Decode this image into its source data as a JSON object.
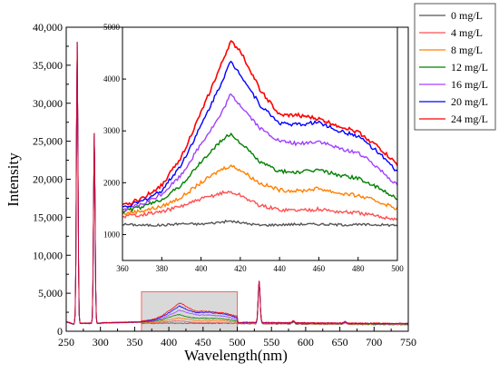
{
  "chart_data": [
    {
      "id": "main",
      "type": "line",
      "title": "",
      "xlabel": "Wavelength(nm)",
      "ylabel": "Intensity",
      "xlim": [
        250,
        750
      ],
      "ylim": [
        0,
        40000
      ],
      "xticks": [
        250,
        300,
        350,
        400,
        450,
        500,
        550,
        600,
        650,
        700,
        750
      ],
      "yticks": [
        0,
        5000,
        10000,
        15000,
        20000,
        25000,
        30000,
        35000,
        40000
      ],
      "xtick_labels": [
        "250",
        "300",
        "350",
        "400",
        "450",
        "500",
        "550",
        "600",
        "650",
        "700",
        "750"
      ],
      "ytick_labels": [
        "0",
        "5,000",
        "10,000",
        "15,000",
        "20,000",
        "25,000",
        "30,000",
        "35,000",
        "40,000"
      ],
      "grid": false,
      "peaks": [
        {
          "x": 266,
          "y": 38200
        },
        {
          "x": 291,
          "y": 26200
        },
        {
          "x": 532,
          "y": 6700
        }
      ],
      "highlight_region": {
        "x": [
          360,
          500
        ],
        "y": [
          0,
          5200
        ]
      }
    },
    {
      "id": "inset",
      "type": "line",
      "title": "",
      "xlabel": "",
      "ylabel": "",
      "xlim": [
        360,
        500
      ],
      "ylim": [
        500,
        5000
      ],
      "xticks": [
        360,
        380,
        400,
        420,
        440,
        460,
        480,
        500
      ],
      "yticks": [
        1000,
        2000,
        3000,
        4000,
        5000
      ],
      "xtick_labels": [
        "360",
        "380",
        "400",
        "420",
        "440",
        "460",
        "480",
        "500"
      ],
      "ytick_labels": [
        "1000",
        "2000",
        "3000",
        "4000",
        "5000"
      ],
      "grid": false,
      "x": [
        360,
        370,
        380,
        390,
        400,
        410,
        415,
        420,
        430,
        440,
        450,
        460,
        470,
        480,
        490,
        500
      ],
      "series": [
        {
          "name": "0 mg/L",
          "color": "#555555",
          "values": [
            1200,
            1180,
            1180,
            1210,
            1200,
            1240,
            1260,
            1230,
            1180,
            1190,
            1200,
            1200,
            1190,
            1190,
            1190,
            1180
          ]
        },
        {
          "name": "4 mg/L",
          "color": "#ff5050",
          "values": [
            1350,
            1390,
            1440,
            1550,
            1680,
            1800,
            1820,
            1760,
            1560,
            1480,
            1470,
            1490,
            1440,
            1420,
            1350,
            1300
          ]
        },
        {
          "name": "8 mg/L",
          "color": "#ff8000",
          "values": [
            1400,
            1460,
            1540,
            1720,
            2000,
            2250,
            2330,
            2250,
            1990,
            1860,
            1840,
            1890,
            1800,
            1750,
            1640,
            1500
          ]
        },
        {
          "name": "12 mg/L",
          "color": "#008000",
          "values": [
            1450,
            1530,
            1680,
            1950,
            2400,
            2800,
            2940,
            2780,
            2400,
            2220,
            2200,
            2250,
            2150,
            2090,
            1900,
            1700
          ]
        },
        {
          "name": "16 mg/L",
          "color": "#a040ff",
          "values": [
            1480,
            1580,
            1780,
            2150,
            2750,
            3300,
            3700,
            3500,
            3050,
            2800,
            2750,
            2800,
            2660,
            2580,
            2300,
            1950
          ]
        },
        {
          "name": "20 mg/L",
          "color": "#0000ff",
          "values": [
            1520,
            1640,
            1850,
            2350,
            3100,
            3900,
            4330,
            4100,
            3500,
            3150,
            3120,
            3170,
            3000,
            2900,
            2600,
            2200
          ]
        },
        {
          "name": "24 mg/L",
          "color": "#ff0000",
          "values": [
            1550,
            1700,
            1950,
            2500,
            3350,
            4250,
            4720,
            4550,
            3800,
            3300,
            3300,
            3230,
            3100,
            2980,
            2700,
            2350
          ]
        }
      ]
    }
  ],
  "legend": {
    "placement": "right",
    "entries": [
      {
        "label": "0 mg/L",
        "color": "#555555"
      },
      {
        "label": "4 mg/L",
        "color": "#ff5050"
      },
      {
        "label": "8 mg/L",
        "color": "#ff8000"
      },
      {
        "label": "12 mg/L",
        "color": "#008000"
      },
      {
        "label": "16 mg/L",
        "color": "#a040ff"
      },
      {
        "label": "20 mg/L",
        "color": "#0000ff"
      },
      {
        "label": "24 mg/L",
        "color": "#ff0000"
      }
    ]
  },
  "colors": {
    "axis": "#000000",
    "highlight_fill": "#d9d9d9",
    "highlight_stroke": "#ff6060",
    "legend_border": "#555555"
  }
}
